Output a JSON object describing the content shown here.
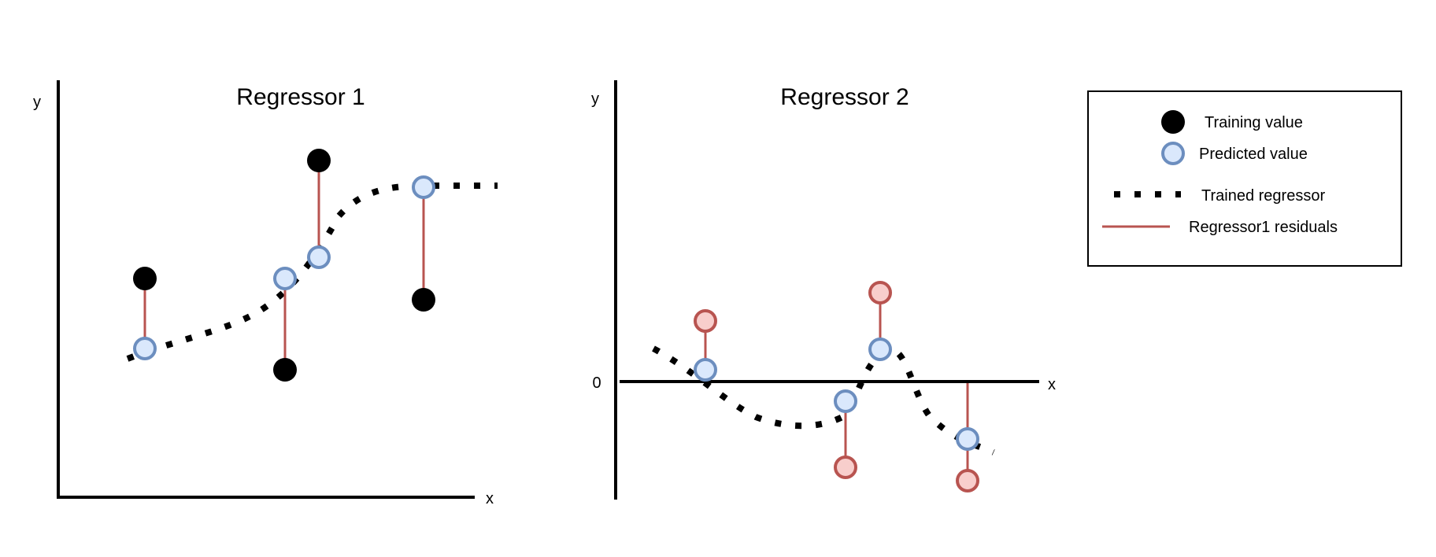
{
  "colors": {
    "training": "#000000",
    "predicted_fill": "#dae8fc",
    "predicted_stroke": "#6c8ebf",
    "residual_fill": "#f8cecc",
    "residual_line": "#b85450",
    "axis": "#000000"
  },
  "regressor1": {
    "title": "Regressor 1",
    "ylabel": "y",
    "xlabel": "x"
  },
  "regressor2": {
    "title": "Regressor 2",
    "ylabel": "y",
    "xlabel": "x",
    "zero_label": "0"
  },
  "legend": {
    "training": "Training value",
    "predicted": "Predicted value",
    "trained": "Trained regressor",
    "residuals": "Regressor1 residuals"
  }
}
